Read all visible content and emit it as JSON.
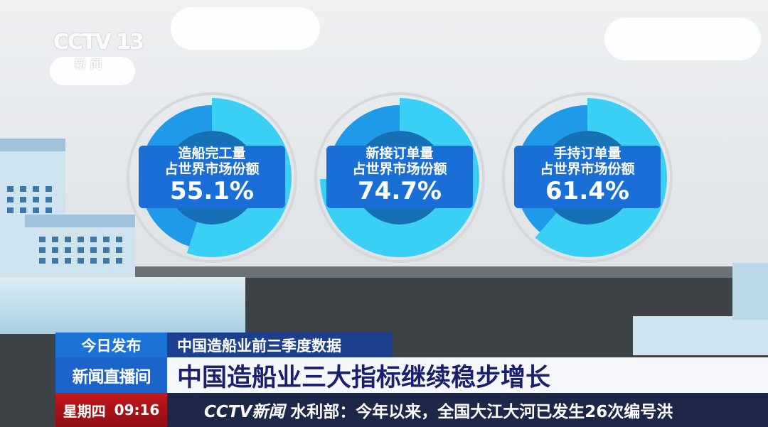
{
  "channel_logo": {
    "text": "CCTV 13",
    "sub": "新闻"
  },
  "chart_data": [
    {
      "type": "pie",
      "style": "donut",
      "title": "造船完工量",
      "subtitle": "占世界市场份额",
      "value_label": "55.1%",
      "values": [
        55.1,
        44.9
      ]
    },
    {
      "type": "pie",
      "style": "donut",
      "title": "新接订单量",
      "subtitle": "占世界市场份额",
      "value_label": "74.7%",
      "values": [
        74.7,
        25.3
      ]
    },
    {
      "type": "pie",
      "style": "donut",
      "title": "手持订单量",
      "subtitle": "占世界市场份额",
      "value_label": "61.4%",
      "values": [
        61.4,
        38.6
      ]
    }
  ],
  "colors": {
    "share": "#3ad0f5",
    "rest": "#1e9ae8",
    "label_bg": "#1a6fd6",
    "headline_text": "#1a1f6e",
    "red": "#b3141a"
  },
  "lower_third": {
    "tag": "今日发布",
    "topic": "中国造船业前三季度数据",
    "program": "新闻直播间",
    "headline": "中国造船业三大指标继续稳步增长",
    "day": "星期四",
    "time": "09:16",
    "ticker_logo": "CCTV新闻",
    "ticker": "水利部：今年以来，全国大江大河已发生26次编号洪"
  }
}
